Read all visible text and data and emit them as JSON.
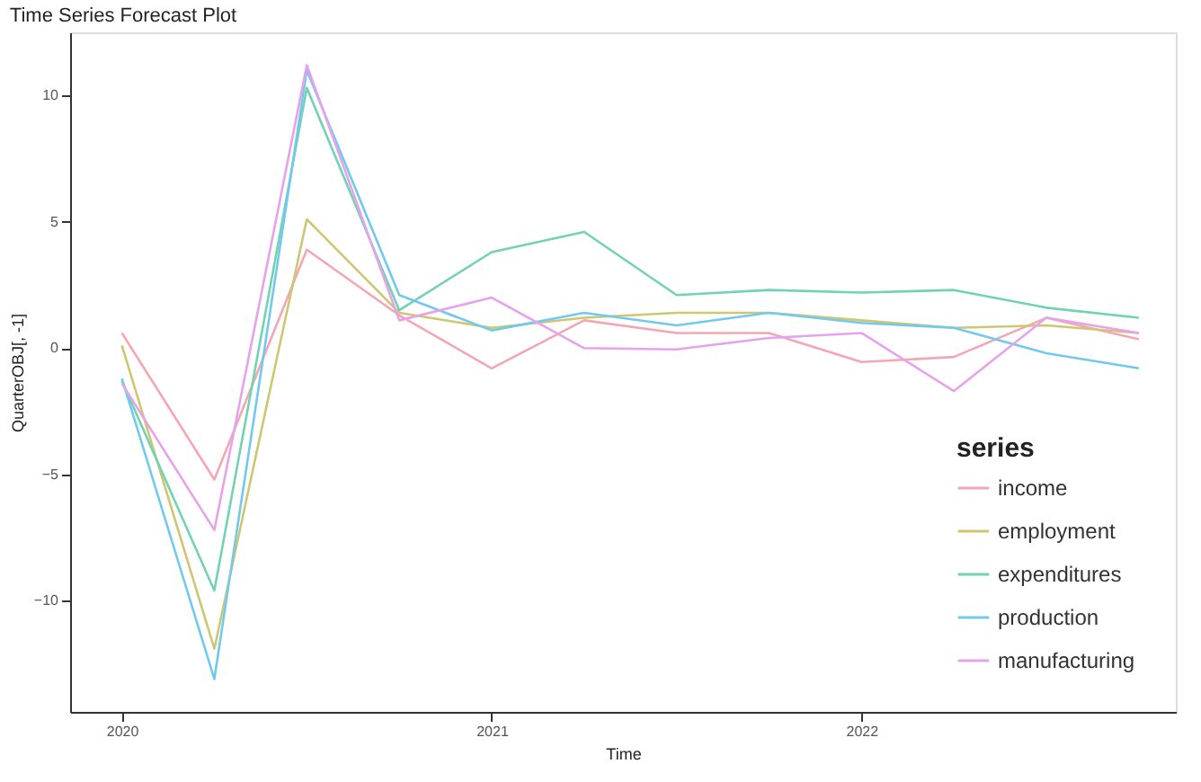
{
  "chart_data": {
    "type": "line",
    "title": "Time Series Forecast Plot",
    "xlabel": "Time",
    "ylabel": "QuarterOBJ[, -1]",
    "legend_title": "series",
    "x": [
      2020,
      2020.25,
      2020.5,
      2020.75,
      2021,
      2021.25,
      2021.5,
      2021.75,
      2022,
      2022.25,
      2022.5,
      2022.75
    ],
    "xlim": [
      2019.86,
      2022.85
    ],
    "xticks": [
      2020,
      2021,
      2022
    ],
    "ylim": [
      -14.4,
      12.5
    ],
    "yticks": [
      -10,
      -5,
      0,
      5,
      10
    ],
    "series": [
      {
        "name": "income",
        "color": "#f4a6b4",
        "values": [
          0.6,
          -5.2,
          3.9,
          1.3,
          -0.8,
          1.1,
          0.6,
          0.6,
          -0.55,
          -0.35,
          1.2,
          0.35
        ]
      },
      {
        "name": "employment",
        "color": "#cfc672",
        "values": [
          0.1,
          -11.9,
          5.1,
          1.4,
          0.8,
          1.2,
          1.4,
          1.4,
          1.1,
          0.8,
          0.9,
          0.6
        ]
      },
      {
        "name": "expenditures",
        "color": "#72d2b2",
        "values": [
          -1.3,
          -9.6,
          10.3,
          1.5,
          3.8,
          4.6,
          2.1,
          2.3,
          2.2,
          2.3,
          1.6,
          1.2
        ]
      },
      {
        "name": "production",
        "color": "#72c9ee",
        "values": [
          -1.2,
          -13.1,
          11.0,
          2.1,
          0.7,
          1.4,
          0.9,
          1.4,
          1.0,
          0.8,
          -0.2,
          -0.8
        ]
      },
      {
        "name": "manufacturing",
        "color": "#e6a2ec",
        "values": [
          -1.4,
          -7.2,
          11.2,
          1.1,
          2.0,
          0.0,
          -0.05,
          0.4,
          0.6,
          -1.7,
          1.2,
          0.6
        ]
      }
    ],
    "grid": false,
    "legend": "bottom right",
    "marker": "none",
    "line_style": "solid"
  }
}
